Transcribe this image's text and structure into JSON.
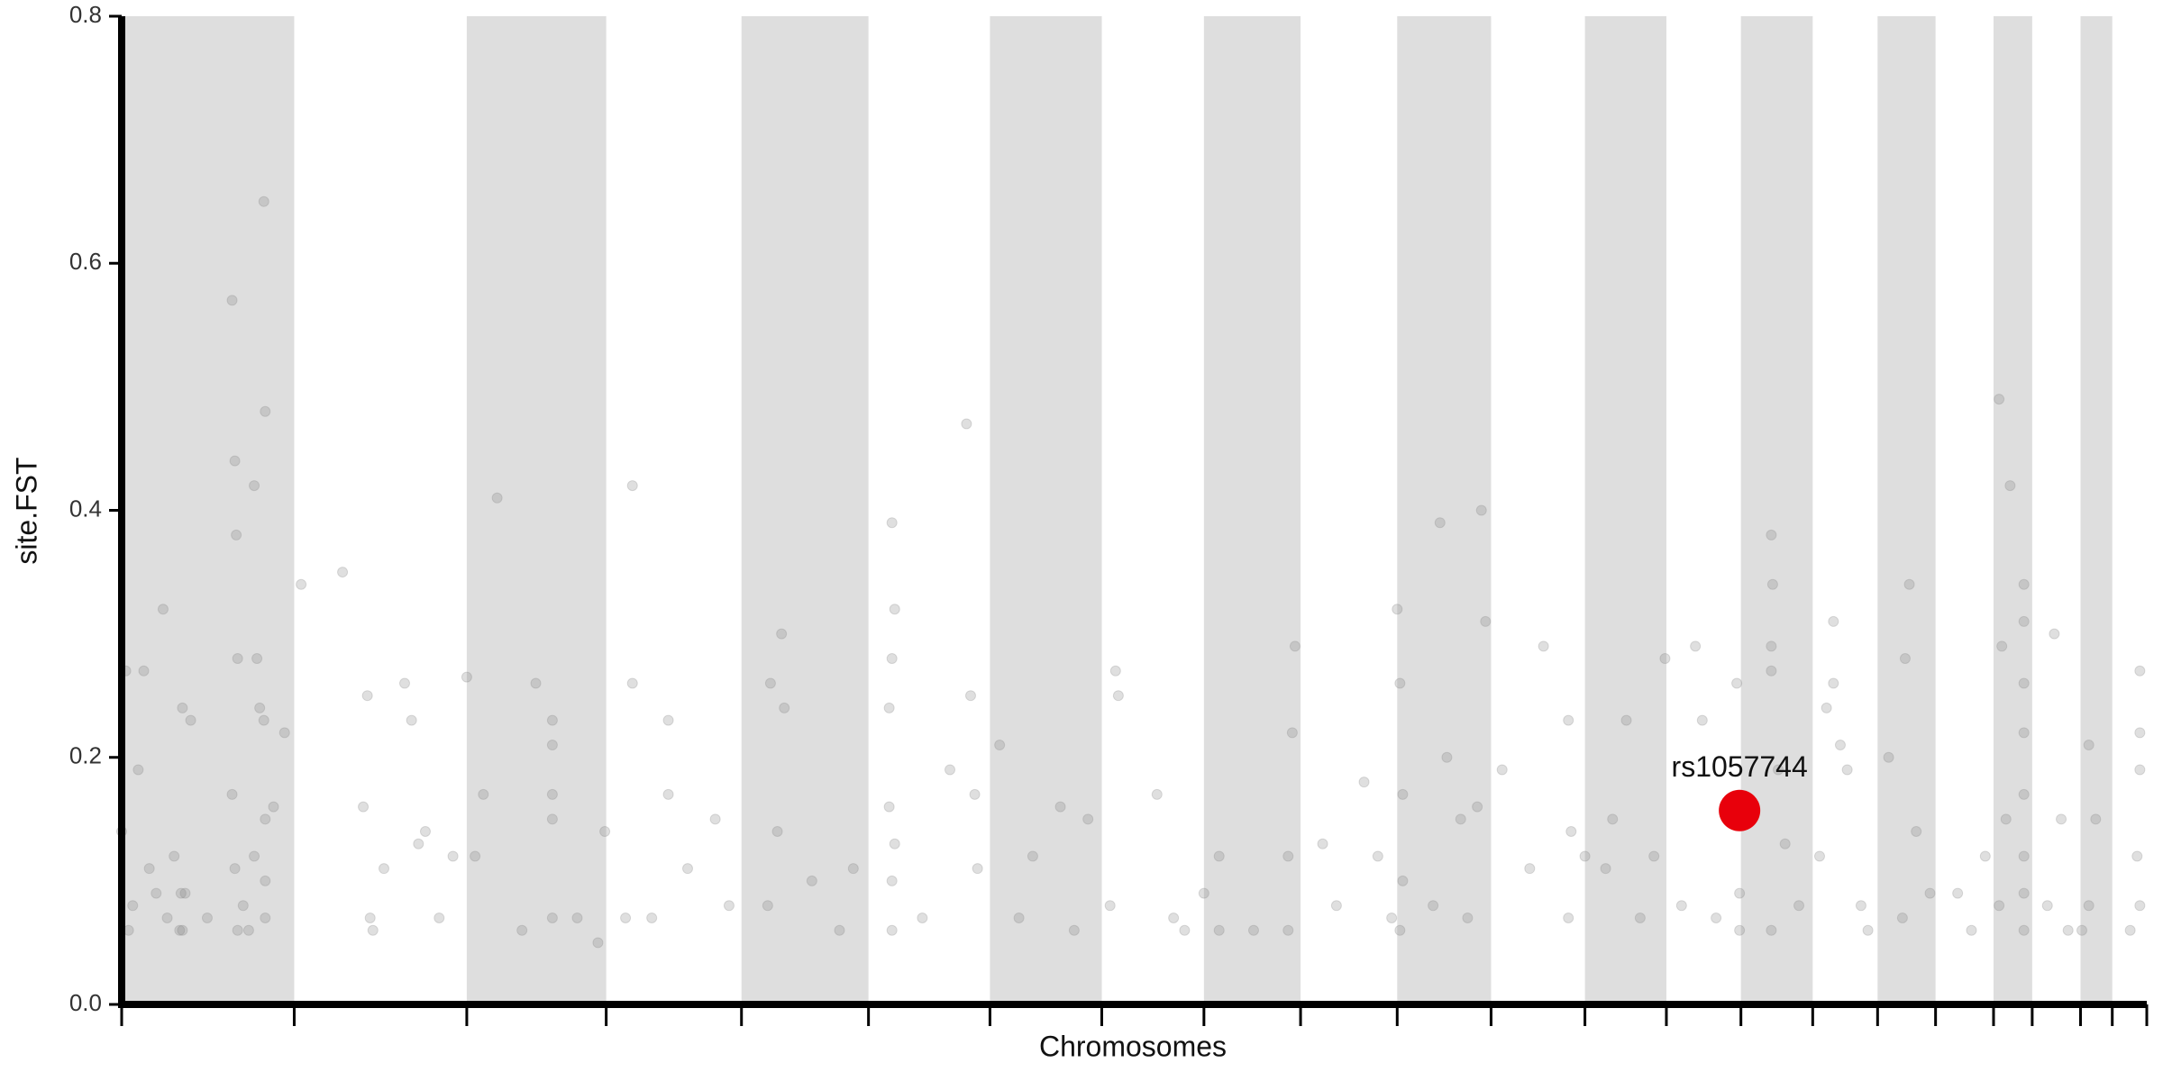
{
  "chart_data": {
    "type": "scatter",
    "x_label": "Chromosomes",
    "y_label": "site.FST",
    "xlim": [
      0,
      1467
    ],
    "ylim": [
      0,
      0.8
    ],
    "xticks": [
      0,
      125,
      250,
      351,
      449,
      541,
      629,
      710,
      784,
      854,
      924,
      992,
      1060,
      1119,
      1173,
      1225,
      1272,
      1314,
      1356,
      1384,
      1419,
      1442,
      1467
    ],
    "yticks": [
      {
        "value": 0,
        "label": "0.0"
      },
      0.2,
      0.4,
      0.6,
      0.8
    ],
    "band_color": "#dedede",
    "point_color": "#7f7f7f",
    "point_opacity": 0.25,
    "points": {
      "x": [
        0,
        3,
        5,
        8,
        12,
        16,
        20,
        25,
        30,
        33,
        38,
        42,
        44,
        50,
        46,
        80,
        82,
        83,
        84,
        80,
        82,
        84,
        96,
        98,
        100,
        103,
        104,
        103,
        104,
        104,
        104,
        88,
        92,
        96,
        110,
        118,
        44,
        43,
        62,
        130,
        160,
        178,
        180,
        182,
        190,
        205,
        210,
        215,
        220,
        175,
        240,
        230,
        250,
        262,
        272,
        256,
        300,
        312,
        312,
        312,
        312,
        312,
        350,
        290,
        330,
        345,
        370,
        370,
        384,
        396,
        396,
        410,
        430,
        440,
        365,
        470,
        478,
        480,
        468,
        475,
        500,
        520,
        530,
        558,
        560,
        558,
        556,
        556,
        558,
        558,
        560,
        580,
        600,
        612,
        615,
        618,
        620,
        636,
        660,
        680,
        700,
        720,
        722,
        716,
        690,
        650,
        750,
        770,
        784,
        762,
        795,
        795,
        850,
        848,
        845,
        845,
        820,
        870,
        900,
        910,
        920,
        880,
        924,
        926,
        928,
        928,
        926,
        955,
        960,
        970,
        985,
        988,
        982,
        975,
        950,
        1000,
        1048,
        1050,
        1048,
        1020,
        1030,
        1060,
        1075,
        1080,
        1110,
        1118,
        1100,
        1090,
        1140,
        1145,
        1170,
        1172,
        1172,
        1130,
        1155,
        1195,
        1196,
        1195,
        1195,
        1200,
        1205,
        1215,
        1195,
        1235,
        1240,
        1240,
        1245,
        1250,
        1230,
        1260,
        1265,
        1280,
        1295,
        1292,
        1300,
        1290,
        1310,
        1330,
        1340,
        1350,
        1360,
        1362,
        1368,
        1378,
        1378,
        1378,
        1378,
        1378,
        1378,
        1378,
        1378,
        1365,
        1360,
        1400,
        1405,
        1395,
        1410,
        1425,
        1430,
        1425,
        1420,
        1462,
        1462,
        1462,
        1460,
        1462,
        1455
      ],
      "y": [
        0.14,
        0.27,
        0.06,
        0.08,
        0.19,
        0.27,
        0.11,
        0.09,
        0.32,
        0.07,
        0.12,
        0.06,
        0.24,
        0.23,
        0.09,
        0.57,
        0.44,
        0.38,
        0.28,
        0.17,
        0.11,
        0.06,
        0.42,
        0.28,
        0.24,
        0.65,
        0.48,
        0.23,
        0.15,
        0.1,
        0.07,
        0.08,
        0.06,
        0.12,
        0.16,
        0.22,
        0.06,
        0.09,
        0.07,
        0.34,
        0.35,
        0.25,
        0.07,
        0.06,
        0.11,
        0.26,
        0.23,
        0.13,
        0.14,
        0.16,
        0.12,
        0.07,
        0.265,
        0.17,
        0.41,
        0.12,
        0.26,
        0.23,
        0.21,
        0.17,
        0.15,
        0.07,
        0.14,
        0.06,
        0.07,
        0.05,
        0.42,
        0.26,
        0.07,
        0.23,
        0.17,
        0.11,
        0.15,
        0.08,
        0.07,
        0.26,
        0.3,
        0.24,
        0.08,
        0.14,
        0.1,
        0.06,
        0.11,
        0.39,
        0.32,
        0.28,
        0.24,
        0.16,
        0.1,
        0.06,
        0.13,
        0.07,
        0.19,
        0.47,
        0.25,
        0.17,
        0.11,
        0.21,
        0.12,
        0.16,
        0.15,
        0.27,
        0.25,
        0.08,
        0.06,
        0.07,
        0.17,
        0.06,
        0.09,
        0.07,
        0.12,
        0.06,
        0.29,
        0.22,
        0.12,
        0.06,
        0.06,
        0.13,
        0.18,
        0.12,
        0.07,
        0.08,
        0.32,
        0.26,
        0.17,
        0.1,
        0.06,
        0.39,
        0.2,
        0.15,
        0.4,
        0.31,
        0.16,
        0.07,
        0.08,
        0.19,
        0.23,
        0.14,
        0.07,
        0.11,
        0.29,
        0.12,
        0.11,
        0.15,
        0.12,
        0.28,
        0.07,
        0.23,
        0.29,
        0.23,
        0.26,
        0.09,
        0.06,
        0.08,
        0.07,
        0.38,
        0.34,
        0.29,
        0.27,
        0.19,
        0.13,
        0.08,
        0.06,
        0.24,
        0.31,
        0.26,
        0.21,
        0.19,
        0.12,
        0.08,
        0.06,
        0.2,
        0.34,
        0.28,
        0.14,
        0.07,
        0.09,
        0.09,
        0.06,
        0.12,
        0.49,
        0.29,
        0.42,
        0.34,
        0.31,
        0.26,
        0.22,
        0.17,
        0.12,
        0.09,
        0.06,
        0.15,
        0.08,
        0.3,
        0.15,
        0.08,
        0.06,
        0.21,
        0.15,
        0.08,
        0.06,
        0.27,
        0.22,
        0.19,
        0.12,
        0.08,
        0.06
      ]
    },
    "highlight": {
      "label": "rs1057744",
      "x": 1172,
      "y": 0.157,
      "color": "#e8000b"
    }
  }
}
